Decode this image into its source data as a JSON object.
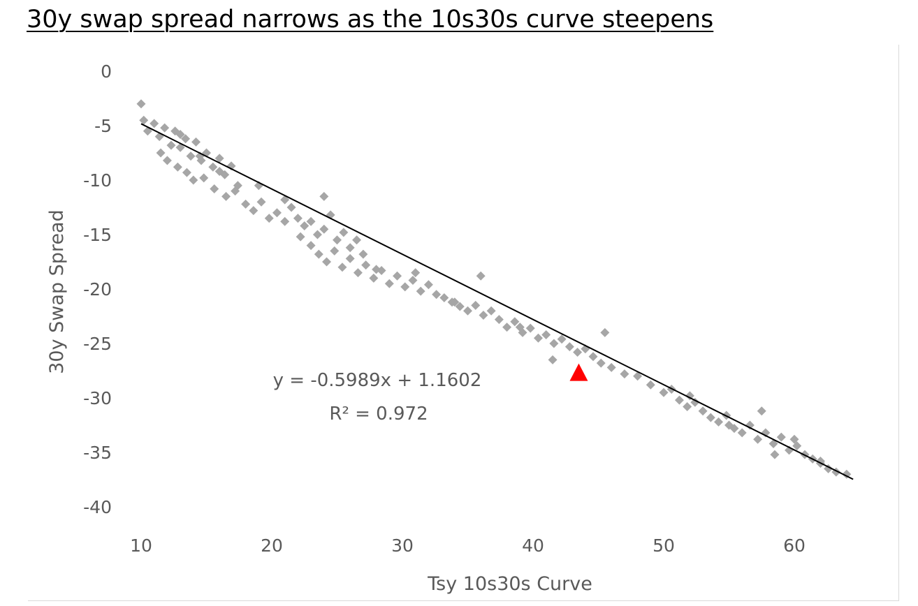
{
  "chart_data": {
    "type": "scatter",
    "title": "30y swap spread narrows as the 10s30s curve steepens",
    "xlabel": "Tsy 10s30s Curve",
    "ylabel": "30y Swap Spread",
    "xlim": [
      7,
      65
    ],
    "ylim": [
      -40,
      0
    ],
    "xticks": [
      10,
      20,
      30,
      40,
      50,
      60
    ],
    "yticks": [
      0,
      -5,
      -10,
      -15,
      -20,
      -25,
      -30,
      -35,
      -40
    ],
    "grid": false,
    "legend": "none",
    "series": [
      {
        "marker": "diamond",
        "color": "#a6a6a6",
        "x": [
          10,
          10.2,
          10.5,
          11,
          11.4,
          11.8,
          12.3,
          12.6,
          13,
          13.4,
          13.8,
          14.2,
          14.6,
          15,
          15.5,
          16,
          16.4,
          16.9,
          17.4,
          11.5,
          12,
          12.8,
          13.5,
          14,
          14.8,
          15.6,
          16.5,
          17.2,
          18,
          18.6,
          19.2,
          19.8,
          20.4,
          21,
          21.5,
          22,
          22.5,
          23,
          23.5,
          24,
          24.5,
          25,
          25.5,
          26,
          26.5,
          27,
          22.2,
          23,
          23.6,
          24.2,
          24.8,
          25.4,
          26,
          26.6,
          27.2,
          27.8,
          28.4,
          29,
          29.6,
          30.2,
          30.8,
          31.4,
          32,
          32.6,
          33.2,
          33.8,
          34.4,
          35,
          35.6,
          36.2,
          36.8,
          37.4,
          38,
          38.6,
          39.2,
          39.8,
          40.4,
          41,
          41.6,
          42.2,
          42.8,
          43.4,
          44,
          44.6,
          45.2,
          46,
          47,
          48,
          49,
          50,
          50.6,
          51.2,
          51.8,
          52.4,
          53,
          53.6,
          54.2,
          54.8,
          55.4,
          56,
          56.6,
          57.2,
          57.8,
          58.4,
          59,
          59.6,
          60.2,
          60.8,
          61.4,
          62,
          62.6,
          63.2,
          64,
          13,
          14.5,
          16,
          19,
          21,
          24,
          28,
          31,
          34,
          36,
          39,
          41.5,
          45.5,
          52,
          55,
          57.5,
          58.5,
          60,
          62
        ],
        "y": [
          -3,
          -4.5,
          -5.5,
          -4.8,
          -6,
          -5.2,
          -6.8,
          -5.5,
          -7,
          -6.2,
          -7.8,
          -6.5,
          -8.2,
          -7.5,
          -8.8,
          -8,
          -9.5,
          -8.7,
          -10.5,
          -7.5,
          -8.2,
          -8.8,
          -9.3,
          -10,
          -9.8,
          -10.8,
          -11.5,
          -11,
          -12.2,
          -12.8,
          -12,
          -13.5,
          -13,
          -11.8,
          -12.5,
          -13.5,
          -14.2,
          -13.8,
          -15,
          -14.5,
          -13.2,
          -15.5,
          -14.8,
          -16.2,
          -15.5,
          -16.8,
          -15.2,
          -16,
          -16.8,
          -17.5,
          -16.5,
          -18,
          -17.2,
          -18.5,
          -17.8,
          -19,
          -18.3,
          -19.5,
          -18.8,
          -19.8,
          -19.2,
          -20.2,
          -19.6,
          -20.5,
          -20.8,
          -21.2,
          -21.6,
          -22,
          -21.5,
          -22.4,
          -22,
          -22.8,
          -23.5,
          -23,
          -24,
          -23.6,
          -24.5,
          -24.2,
          -25,
          -24.6,
          -25.3,
          -25.8,
          -25.5,
          -26.2,
          -26.8,
          -27.2,
          -27.8,
          -28,
          -28.8,
          -29.5,
          -29.2,
          -30.2,
          -30.8,
          -30.4,
          -31.2,
          -31.8,
          -32.2,
          -31.6,
          -32.8,
          -33.2,
          -32.5,
          -33.8,
          -33.2,
          -34.2,
          -33.6,
          -34.8,
          -34.4,
          -35.2,
          -35.6,
          -35.8,
          -36.5,
          -36.8,
          -37,
          -5.8,
          -7.8,
          -9.2,
          -10.5,
          -13.8,
          -11.5,
          -18.2,
          -18.5,
          -21.2,
          -18.8,
          -23.5,
          -26.5,
          -24,
          -29.8,
          -32.5,
          -31.2,
          -35.2,
          -33.8,
          -36
        ]
      },
      {
        "marker": "triangle",
        "color": "#ff0000",
        "x": [
          43.5
        ],
        "y": [
          -27.8
        ]
      }
    ],
    "trendline": {
      "type": "linear",
      "color": "#000000",
      "slope": -0.5989,
      "intercept": 1.1602,
      "x_range": [
        10,
        64.5
      ]
    },
    "annotations": [
      "y = -0.5989x + 1.1602",
      "R² = 0.972"
    ]
  }
}
